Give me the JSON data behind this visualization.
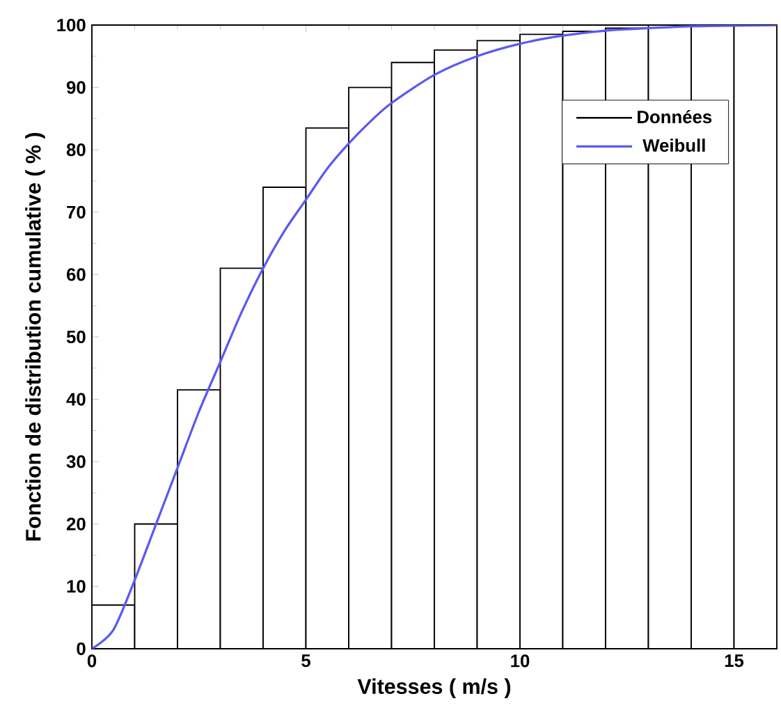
{
  "chart_data": {
    "type": "histogram",
    "xlabel": "Vitesses ( m/s )",
    "ylabel": "Fonction de distribution cumulative  ( % )",
    "xlim": [
      0,
      16
    ],
    "ylim": [
      0,
      100
    ],
    "xticks": [
      0,
      5,
      10,
      15
    ],
    "yticks": [
      0,
      10,
      20,
      30,
      40,
      50,
      60,
      70,
      80,
      90,
      100
    ],
    "grid": false,
    "legend": "top right",
    "series": [
      {
        "name": "Données",
        "type": "histogram",
        "color": "#000000",
        "bins": [
          0,
          1,
          2,
          3,
          4,
          5,
          6,
          7,
          8,
          9,
          10,
          11,
          12,
          13,
          14,
          15,
          16
        ],
        "values": [
          7,
          20,
          41.5,
          61,
          74,
          83.5,
          90,
          94,
          96,
          97.5,
          98.5,
          99,
          99.5,
          100,
          100,
          100
        ]
      },
      {
        "name": "Weibull",
        "type": "line",
        "color": "#5a5af0",
        "x": [
          0,
          0.5,
          1,
          1.5,
          2,
          2.5,
          3,
          3.5,
          4,
          4.5,
          5,
          5.5,
          6,
          6.5,
          7,
          8,
          9,
          10,
          11,
          12,
          13,
          14,
          16
        ],
        "values": [
          0,
          3,
          11,
          20,
          29,
          38,
          46,
          54,
          61,
          67,
          72,
          77,
          81,
          84.5,
          87.5,
          92,
          95,
          97,
          98.3,
          99.1,
          99.5,
          99.8,
          100
        ]
      }
    ]
  }
}
